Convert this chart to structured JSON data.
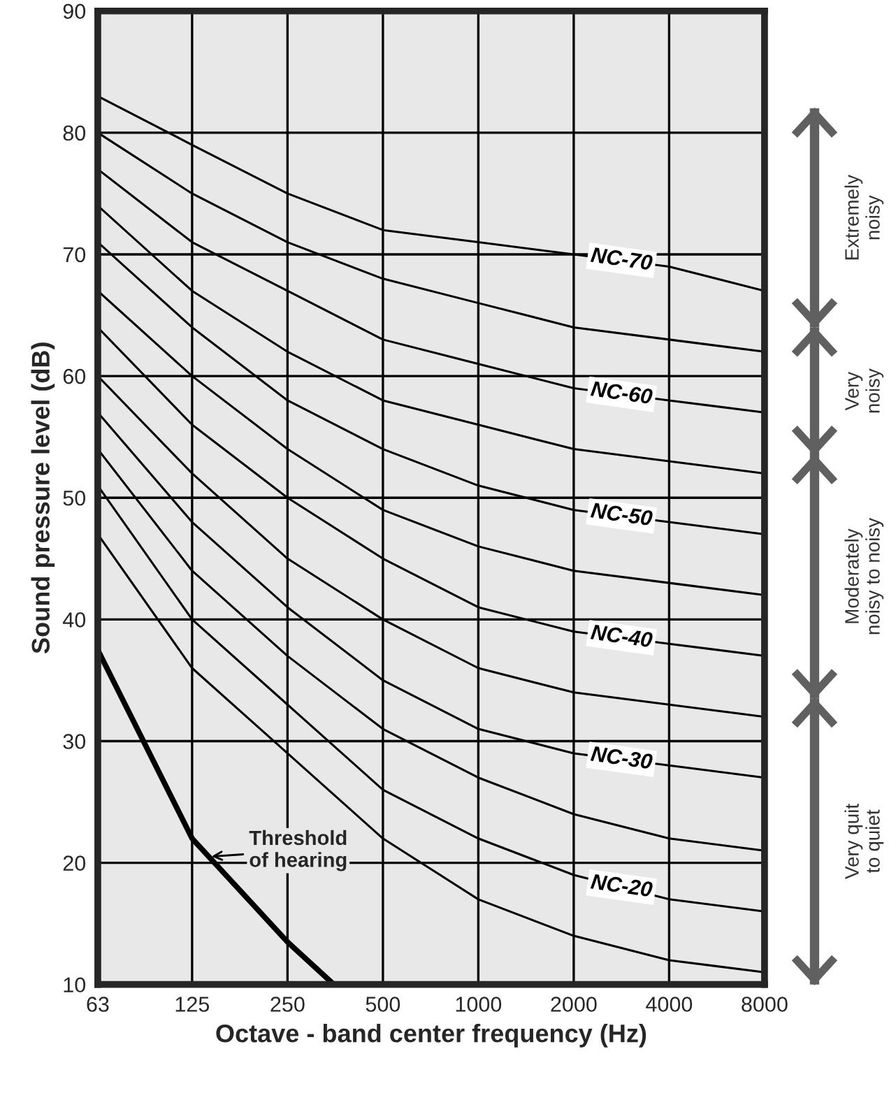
{
  "chart_data": {
    "type": "line",
    "xlabel": "Octave - band center frequency (Hz)",
    "ylabel": "Sound pressure level (dB)",
    "x": [
      63,
      125,
      250,
      500,
      1000,
      2000,
      4000,
      8000
    ],
    "series": [
      {
        "color": "#000000",
        "values": [
          47,
          36,
          29,
          22,
          17,
          14,
          12,
          11
        ]
      },
      {
        "name": "NC-20",
        "color": "#000000",
        "values": [
          51,
          40,
          33,
          26,
          22,
          19,
          17,
          16
        ]
      },
      {
        "color": "#000000",
        "values": [
          54,
          44,
          37,
          31,
          27,
          24,
          22,
          21
        ]
      },
      {
        "name": "NC-30",
        "color": "#000000",
        "values": [
          57,
          48,
          41,
          35,
          31,
          29,
          28,
          27
        ]
      },
      {
        "color": "#000000",
        "values": [
          60,
          52,
          45,
          40,
          36,
          34,
          33,
          32
        ]
      },
      {
        "name": "NC-40",
        "color": "#000000",
        "values": [
          64,
          56,
          50,
          45,
          41,
          39,
          38,
          37
        ]
      },
      {
        "color": "#000000",
        "values": [
          67,
          60,
          54,
          49,
          46,
          44,
          43,
          42
        ]
      },
      {
        "name": "NC-50",
        "color": "#000000",
        "values": [
          71,
          64,
          58,
          54,
          51,
          49,
          48,
          47
        ]
      },
      {
        "color": "#000000",
        "values": [
          74,
          67,
          62,
          58,
          56,
          54,
          53,
          52
        ]
      },
      {
        "name": "NC-60",
        "color": "#000000",
        "values": [
          77,
          71,
          67,
          63,
          61,
          59,
          58,
          57
        ]
      },
      {
        "color": "#000000",
        "values": [
          80,
          75,
          71,
          68,
          66,
          64,
          63,
          62
        ]
      },
      {
        "name": "NC-70",
        "color": "#000000",
        "values": [
          83,
          79,
          75,
          72,
          71,
          70,
          69,
          67
        ]
      },
      {
        "color": "#000000",
        "x": [
          63,
          125,
          250,
          350
        ],
        "values": [
          37.5,
          22,
          13.5,
          10
        ]
      }
    ],
    "annotations": [
      {
        "text": "Threshold\nof hearing",
        "x": 140,
        "y": 20.5
      },
      "Extremely\nnoisy",
      "Very\nnoisy",
      "Moderately\nnoisy to noisy",
      "Very quit\nto quiet"
    ],
    "log": "x",
    "xlim": [
      63,
      8000
    ],
    "ylim": [
      10,
      90
    ],
    "xticks": [
      63,
      125,
      250,
      500,
      1000,
      2000,
      4000,
      8000
    ],
    "yticks": [
      10,
      20,
      30,
      40,
      50,
      60,
      70,
      80,
      90
    ],
    "grid": true,
    "legend": false,
    "marker": "none",
    "line_style": "solid"
  }
}
